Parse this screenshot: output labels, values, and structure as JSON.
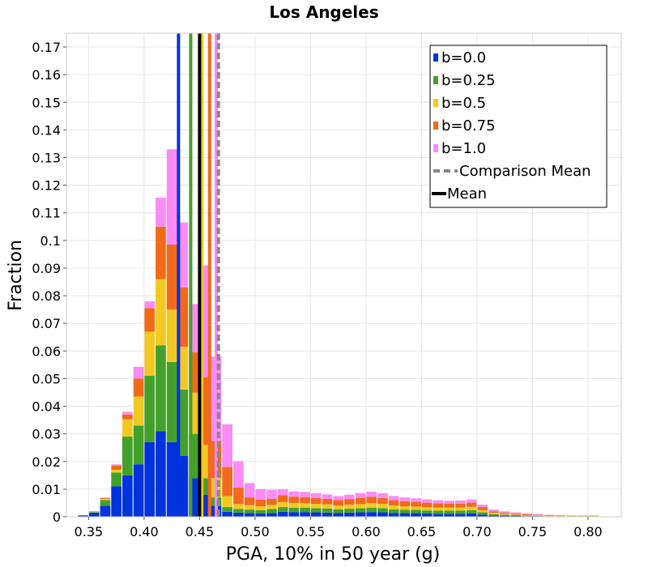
{
  "chart_data": {
    "type": "bar",
    "stacked": true,
    "title": "Los Angeles",
    "xlabel": "PGA, 10% in 50 year (g)",
    "ylabel": "Fraction",
    "xlim": [
      0.33,
      0.83
    ],
    "ylim": [
      0,
      0.175
    ],
    "bin_width": 0.01,
    "xticks": [
      0.35,
      0.4,
      0.45,
      0.5,
      0.55,
      0.6,
      0.65,
      0.7,
      0.75,
      0.8
    ],
    "xtick_labels": [
      "0.35",
      "0.40",
      "0.45",
      "0.50",
      "0.55",
      "0.60",
      "0.65",
      "0.70",
      "0.75",
      "0.80"
    ],
    "yticks": [
      0,
      0.01,
      0.02,
      0.03,
      0.04,
      0.05,
      0.06,
      0.07,
      0.08,
      0.09,
      0.1,
      0.11,
      0.12,
      0.13,
      0.14,
      0.15,
      0.16,
      0.17
    ],
    "ytick_labels": [
      "0",
      "0.01",
      "0.02",
      "0.03",
      "0.04",
      "0.05",
      "0.06",
      "0.07",
      "0.08",
      "0.09",
      "0.1",
      "0.11",
      "0.12",
      "0.13",
      "0.14",
      "0.15",
      "0.16",
      "0.17"
    ],
    "grid": true,
    "legend_position": "top-right",
    "x": [
      0.345,
      0.355,
      0.365,
      0.375,
      0.385,
      0.395,
      0.405,
      0.415,
      0.425,
      0.435,
      0.445,
      0.455,
      0.465,
      0.475,
      0.485,
      0.495,
      0.505,
      0.515,
      0.525,
      0.535,
      0.545,
      0.555,
      0.565,
      0.575,
      0.585,
      0.595,
      0.605,
      0.615,
      0.625,
      0.635,
      0.645,
      0.655,
      0.665,
      0.675,
      0.685,
      0.695,
      0.705,
      0.715,
      0.725,
      0.735,
      0.745,
      0.755,
      0.765,
      0.775,
      0.785,
      0.795,
      0.805,
      0.815
    ],
    "series": [
      {
        "name": "b=0.0",
        "color": "#0033dd",
        "values": [
          0.0005,
          0.0015,
          0.004,
          0.011,
          0.015,
          0.019,
          0.027,
          0.031,
          0.027,
          0.022,
          0.014,
          0.008,
          0.004,
          0.0018,
          0.0015,
          0.0013,
          0.0012,
          0.0014,
          0.0018,
          0.0017,
          0.0017,
          0.0016,
          0.0015,
          0.0014,
          0.0015,
          0.0016,
          0.0017,
          0.0016,
          0.0014,
          0.0013,
          0.0013,
          0.0012,
          0.0011,
          0.0011,
          0.0011,
          0.0012,
          0.0008,
          0.0005,
          0.0004,
          0.0003,
          0.0002,
          0.0002,
          0.0001,
          0.0001,
          0.0001,
          0.0001,
          0.0001,
          0.0
        ]
      },
      {
        "name": "b=0.25",
        "color": "#44a02a",
        "values": [
          0.0,
          0.0002,
          0.002,
          0.005,
          0.014,
          0.014,
          0.024,
          0.031,
          0.029,
          0.024,
          0.016,
          0.006,
          0.003,
          0.0017,
          0.0013,
          0.0013,
          0.0012,
          0.0014,
          0.0017,
          0.0016,
          0.0016,
          0.0015,
          0.0015,
          0.0013,
          0.0014,
          0.0015,
          0.0016,
          0.0015,
          0.0013,
          0.0012,
          0.0012,
          0.0011,
          0.0011,
          0.0011,
          0.0011,
          0.0012,
          0.0008,
          0.0004,
          0.0003,
          0.0003,
          0.0002,
          0.0001,
          0.0001,
          0.0001,
          0.0001,
          0.0001,
          0.0001,
          0.0
        ]
      },
      {
        "name": "b=0.5",
        "color": "#f2c923",
        "values": [
          0.0,
          0.0002,
          0.0005,
          0.001,
          0.0063,
          0.0105,
          0.016,
          0.024,
          0.019,
          0.0155,
          0.015,
          0.012,
          0.007,
          0.004,
          0.0018,
          0.0016,
          0.0014,
          0.0015,
          0.0018,
          0.0017,
          0.0016,
          0.0016,
          0.0015,
          0.0014,
          0.0015,
          0.0015,
          0.0016,
          0.0016,
          0.0014,
          0.0013,
          0.0012,
          0.0012,
          0.0011,
          0.0011,
          0.0011,
          0.0012,
          0.0008,
          0.0005,
          0.0004,
          0.0003,
          0.0002,
          0.0002,
          0.0001,
          0.0001,
          0.0001,
          0.0001,
          0.0001,
          0.0
        ]
      },
      {
        "name": "b=0.75",
        "color": "#f06a1a",
        "values": [
          0.0,
          0.0001,
          0.0003,
          0.0015,
          0.0017,
          0.0065,
          0.0085,
          0.019,
          0.0235,
          0.0215,
          0.0145,
          0.0245,
          0.0135,
          0.0105,
          0.006,
          0.0028,
          0.0024,
          0.0022,
          0.0025,
          0.0023,
          0.0022,
          0.0021,
          0.002,
          0.0019,
          0.002,
          0.0022,
          0.0023,
          0.0021,
          0.0019,
          0.0018,
          0.0017,
          0.0016,
          0.0015,
          0.0014,
          0.0014,
          0.0015,
          0.0011,
          0.0006,
          0.0004,
          0.0003,
          0.0003,
          0.0002,
          0.0002,
          0.0001,
          0.0001,
          0.0001,
          0.0001,
          0.0
        ]
      },
      {
        "name": "b=1.0",
        "color": "#f98cf5",
        "values": [
          0.0,
          0.0001,
          0.0002,
          0.0005,
          0.001,
          0.0043,
          0.0025,
          0.0105,
          0.0345,
          0.0235,
          0.0175,
          0.0405,
          0.0305,
          0.0155,
          0.0095,
          0.0052,
          0.0038,
          0.0033,
          0.0022,
          0.0019,
          0.0019,
          0.0017,
          0.0016,
          0.0015,
          0.0016,
          0.0018,
          0.0019,
          0.0017,
          0.0015,
          0.0014,
          0.0013,
          0.0012,
          0.0012,
          0.0011,
          0.0012,
          0.0012,
          0.0009,
          0.0006,
          0.0005,
          0.0004,
          0.0003,
          0.0003,
          0.0002,
          0.0002,
          0.0001,
          0.0001,
          0.0001,
          0.0
        ]
      }
    ],
    "mean_lines": [
      {
        "series": "b=0.0",
        "x": 0.431,
        "color": "#0033dd"
      },
      {
        "series": "b=0.25",
        "x": 0.442,
        "color": "#44a02a"
      },
      {
        "series": "b=0.5",
        "x": 0.452,
        "color": "#f2c923"
      },
      {
        "series": "b=0.75",
        "x": 0.459,
        "color": "#f06a1a"
      },
      {
        "series": "b=1.0",
        "x": 0.465,
        "color": "#f98cf5"
      }
    ],
    "mean": {
      "name": "Mean",
      "x": 0.45,
      "color": "#000000"
    },
    "comparison_mean": {
      "name": "Comparison Mean",
      "x": 0.467,
      "color": "#888888"
    },
    "legend": [
      {
        "label": "b=0.0",
        "kind": "swatch",
        "color": "#0033dd"
      },
      {
        "label": "b=0.25",
        "kind": "swatch",
        "color": "#44a02a"
      },
      {
        "label": "b=0.5",
        "kind": "swatch",
        "color": "#f2c923"
      },
      {
        "label": "b=0.75",
        "kind": "swatch",
        "color": "#f06a1a"
      },
      {
        "label": "b=1.0",
        "kind": "swatch",
        "color": "#f98cf5"
      },
      {
        "label": "Comparison Mean",
        "kind": "dashed",
        "color": "#888888"
      },
      {
        "label": "Mean",
        "kind": "solid",
        "color": "#000000"
      }
    ]
  }
}
